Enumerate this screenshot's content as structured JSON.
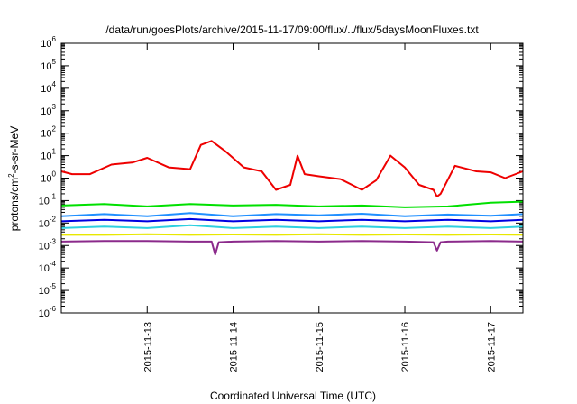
{
  "chart_data": {
    "type": "line",
    "title": "/data/run/goesPlots/archive/2015-11-17/09:00/flux/../flux/5daysMoonFluxes.txt",
    "xlabel": "Coordinated Universal Time (UTC)",
    "ylabel": "protons/cm2-s-sr-MeV",
    "yscale": "log",
    "ylim": [
      1e-06,
      1000000.0
    ],
    "xlim": [
      "2015-11-12T00:00",
      "2015-11-17T09:00"
    ],
    "x_ticks": [
      "2015-11-13",
      "2015-11-14",
      "2015-11-15",
      "2015-11-16",
      "2015-11-17"
    ],
    "y_ticks": [
      {
        "base": "10",
        "exp": "-6",
        "value": 1e-06
      },
      {
        "base": "10",
        "exp": "-5",
        "value": 1e-05
      },
      {
        "base": "10",
        "exp": "-4",
        "value": 0.0001
      },
      {
        "base": "10",
        "exp": "-3",
        "value": 0.001
      },
      {
        "base": "10",
        "exp": "-2",
        "value": 0.01
      },
      {
        "base": "10",
        "exp": "-1",
        "value": 0.1
      },
      {
        "base": "10",
        "exp": "0",
        "value": 1
      },
      {
        "base": "10",
        "exp": "1",
        "value": 10
      },
      {
        "base": "10",
        "exp": "2",
        "value": 100
      },
      {
        "base": "10",
        "exp": "3",
        "value": 1000
      },
      {
        "base": "10",
        "exp": "4",
        "value": 10000
      },
      {
        "base": "10",
        "exp": "5",
        "value": 100000
      },
      {
        "base": "10",
        "exp": "6",
        "value": 1000000
      }
    ],
    "grid": false,
    "legend": "none",
    "series": [
      {
        "color": "#e8e800",
        "x": [
          "2015-11-12T00:00",
          "2015-11-12T12:00",
          "2015-11-13T00:00",
          "2015-11-13T12:00",
          "2015-11-14T00:00",
          "2015-11-14T12:00",
          "2015-11-15T00:00",
          "2015-11-15T12:00",
          "2015-11-16T00:00",
          "2015-11-16T12:00",
          "2015-11-17T00:00",
          "2015-11-17T09:00"
        ],
        "y": [
          0.003,
          0.003,
          0.0032,
          0.003,
          0.0031,
          0.003,
          0.0032,
          0.003,
          0.0031,
          0.003,
          0.0031,
          0.003
        ]
      },
      {
        "color": "#2dd0e0",
        "x": [
          "2015-11-12T00:00",
          "2015-11-12T12:00",
          "2015-11-13T00:00",
          "2015-11-13T12:00",
          "2015-11-14T00:00",
          "2015-11-14T12:00",
          "2015-11-15T00:00",
          "2015-11-15T12:00",
          "2015-11-16T00:00",
          "2015-11-16T12:00",
          "2015-11-17T00:00",
          "2015-11-17T09:00"
        ],
        "y": [
          0.006,
          0.007,
          0.006,
          0.008,
          0.006,
          0.007,
          0.006,
          0.007,
          0.006,
          0.007,
          0.006,
          0.007
        ]
      },
      {
        "color": "#1f8fff",
        "x": [
          "2015-11-12T00:00",
          "2015-11-12T12:00",
          "2015-11-13T00:00",
          "2015-11-13T12:00",
          "2015-11-14T00:00",
          "2015-11-14T12:00",
          "2015-11-15T00:00",
          "2015-11-15T12:00",
          "2015-11-16T00:00",
          "2015-11-16T12:00",
          "2015-11-17T00:00",
          "2015-11-17T09:00"
        ],
        "y": [
          0.02,
          0.025,
          0.02,
          0.028,
          0.02,
          0.025,
          0.022,
          0.026,
          0.02,
          0.024,
          0.021,
          0.025
        ]
      },
      {
        "color": "#0000e0",
        "x": [
          "2015-11-12T00:00",
          "2015-11-12T12:00",
          "2015-11-13T00:00",
          "2015-11-13T12:00",
          "2015-11-14T00:00",
          "2015-11-14T12:00",
          "2015-11-15T00:00",
          "2015-11-15T12:00",
          "2015-11-16T00:00",
          "2015-11-16T12:00",
          "2015-11-17T00:00",
          "2015-11-17T09:00"
        ],
        "y": [
          0.012,
          0.014,
          0.012,
          0.015,
          0.012,
          0.014,
          0.012,
          0.014,
          0.012,
          0.014,
          0.012,
          0.014
        ]
      },
      {
        "color": "#00e000",
        "x": [
          "2015-11-12T00:00",
          "2015-11-12T12:00",
          "2015-11-13T00:00",
          "2015-11-13T12:00",
          "2015-11-14T00:00",
          "2015-11-14T12:00",
          "2015-11-15T00:00",
          "2015-11-15T12:00",
          "2015-11-16T00:00",
          "2015-11-16T12:00",
          "2015-11-17T00:00",
          "2015-11-17T09:00"
        ],
        "y": [
          0.06,
          0.07,
          0.055,
          0.07,
          0.06,
          0.065,
          0.055,
          0.06,
          0.05,
          0.055,
          0.08,
          0.09
        ]
      },
      {
        "color": "#8b2a8b",
        "x": [
          "2015-11-12T00:00",
          "2015-11-12T12:00",
          "2015-11-13T00:00",
          "2015-11-13T12:00",
          "2015-11-13T18:00",
          "2015-11-13T19:00",
          "2015-11-13T20:00",
          "2015-11-14T00:00",
          "2015-11-14T12:00",
          "2015-11-15T00:00",
          "2015-11-15T12:00",
          "2015-11-16T00:00",
          "2015-11-16T08:00",
          "2015-11-16T09:00",
          "2015-11-16T10:00",
          "2015-11-16T12:00",
          "2015-11-17T00:00",
          "2015-11-17T09:00"
        ],
        "y": [
          0.0015,
          0.0016,
          0.0016,
          0.0015,
          0.0015,
          0.0004,
          0.0014,
          0.0015,
          0.0016,
          0.0015,
          0.0016,
          0.0015,
          0.0014,
          0.0006,
          0.0014,
          0.0015,
          0.0016,
          0.0015
        ]
      },
      {
        "color": "#ee0000",
        "x": [
          "2015-11-12T00:00",
          "2015-11-12T03:00",
          "2015-11-12T08:00",
          "2015-11-12T14:00",
          "2015-11-12T20:00",
          "2015-11-13T00:00",
          "2015-11-13T06:00",
          "2015-11-13T12:00",
          "2015-11-13T15:00",
          "2015-11-13T18:00",
          "2015-11-13T22:00",
          "2015-11-14T03:00",
          "2015-11-14T08:00",
          "2015-11-14T12:00",
          "2015-11-14T16:00",
          "2015-11-14T18:00",
          "2015-11-14T20:00",
          "2015-11-15T00:00",
          "2015-11-15T06:00",
          "2015-11-15T12:00",
          "2015-11-15T16:00",
          "2015-11-15T20:00",
          "2015-11-16T00:00",
          "2015-11-16T04:00",
          "2015-11-16T08:00",
          "2015-11-16T09:00",
          "2015-11-16T10:00",
          "2015-11-16T14:00",
          "2015-11-16T20:00",
          "2015-11-17T00:00",
          "2015-11-17T04:00",
          "2015-11-17T09:00"
        ],
        "y": [
          2,
          1.5,
          1.5,
          4,
          5,
          8,
          3,
          2.5,
          30,
          45,
          15,
          3,
          2,
          0.3,
          0.5,
          10,
          1.5,
          1.2,
          0.9,
          0.3,
          0.8,
          10,
          3,
          0.5,
          0.3,
          0.15,
          0.2,
          3.5,
          2,
          1.8,
          1,
          2
        ]
      }
    ]
  }
}
